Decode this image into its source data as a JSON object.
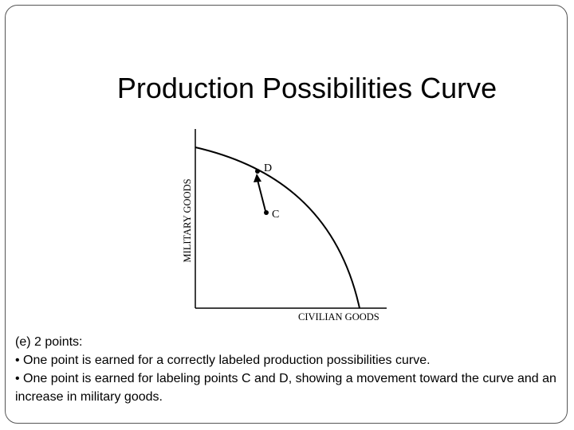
{
  "title": "Production Possibilities Curve",
  "diagram": {
    "y_axis_label": "MILITARY GOODS",
    "x_axis_label": "CIVILIAN GOODS",
    "point_d_label": "D",
    "point_c_label": "C"
  },
  "notes": {
    "heading": "(e) 2 points:",
    "bullets": [
      "• One point is earned for a correctly labeled production possibilities curve.",
      "• One point is earned for labeling points C and D, showing a movement toward the curve and an increase in military goods."
    ]
  }
}
